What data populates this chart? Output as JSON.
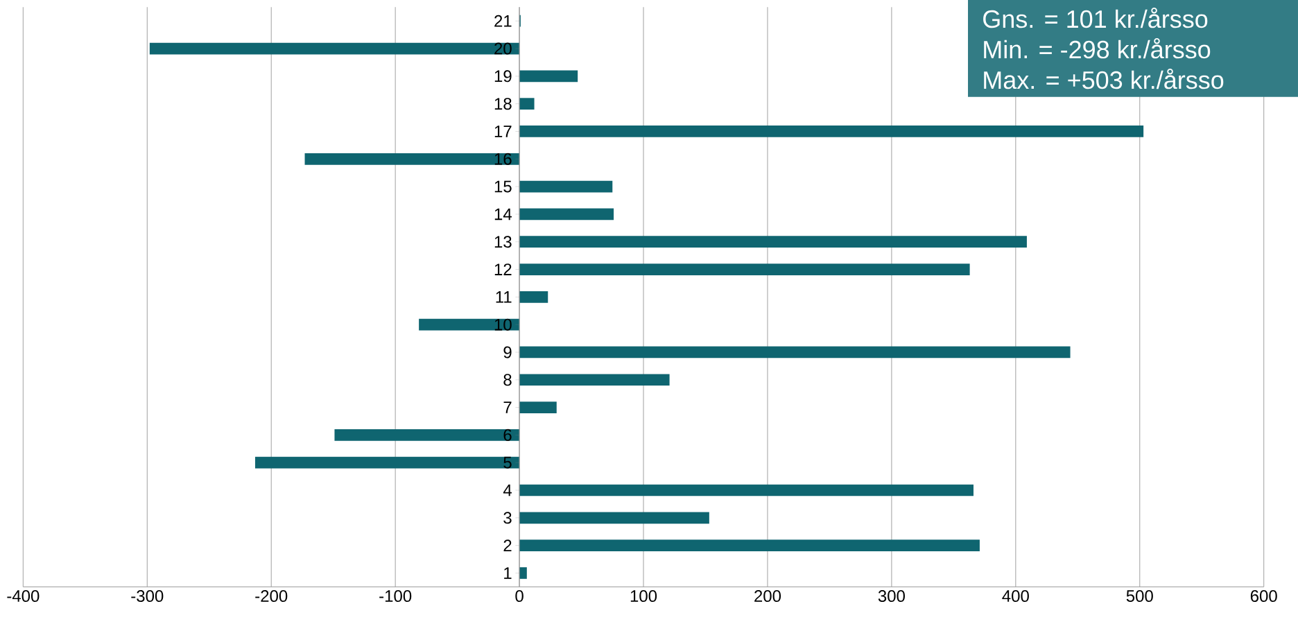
{
  "chart_data": {
    "type": "bar",
    "orientation": "horizontal",
    "categories": [
      "21",
      "20",
      "19",
      "18",
      "17",
      "16",
      "15",
      "14",
      "13",
      "12",
      "11",
      "10",
      "9",
      "8",
      "7",
      "6",
      "5",
      "4",
      "3",
      "2",
      "1"
    ],
    "values": [
      1,
      -298,
      47,
      12,
      503,
      -173,
      75,
      76,
      409,
      363,
      23,
      -81,
      444,
      121,
      30,
      -149,
      -213,
      366,
      153,
      371,
      6
    ],
    "color": "#0f6570",
    "xlim": [
      -400,
      600
    ],
    "xticks": [
      -400,
      -300,
      -200,
      -100,
      0,
      100,
      200,
      300,
      400,
      500,
      600
    ],
    "grid": "x",
    "annotations": [
      "Gns. =  101 kr./årsso",
      "Min.  = -298 kr./årsso",
      "Max. = +503 kr./årsso"
    ]
  }
}
